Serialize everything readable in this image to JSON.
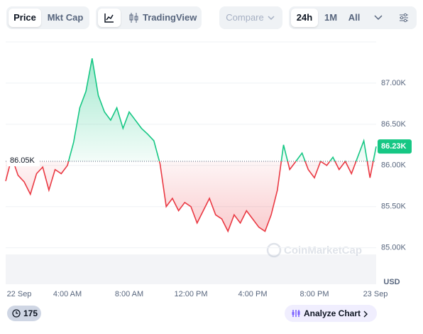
{
  "toolbar": {
    "tabs": [
      "Price",
      "Mkt Cap"
    ],
    "tradingview": "TradingView",
    "compare": "Compare",
    "ranges": [
      "24h",
      "1M",
      "All"
    ]
  },
  "chart_data": {
    "type": "line",
    "x": [
      0,
      0.4,
      0.8,
      1.2,
      1.6,
      2.0,
      2.4,
      2.8,
      3.2,
      3.6,
      4.0,
      4.4,
      4.8,
      5.2,
      5.6,
      6.0,
      6.4,
      6.8,
      7.2,
      7.6,
      8.0,
      8.4,
      8.8,
      9.2,
      9.6,
      10.0,
      10.4,
      10.8,
      11.2,
      11.6,
      12.0,
      12.4,
      12.8,
      13.2,
      13.6,
      14.0,
      14.4,
      14.8,
      15.2,
      15.6,
      16.0,
      16.4,
      16.8,
      17.2,
      17.6,
      18.0,
      18.4,
      18.8,
      19.2,
      19.6,
      20.0,
      20.4,
      20.8,
      21.2,
      21.6,
      22.0,
      22.4,
      22.8,
      23.2,
      23.6,
      24.0
    ],
    "values": [
      85810,
      86100,
      85880,
      85800,
      85650,
      85900,
      85980,
      85700,
      85950,
      85900,
      86000,
      86280,
      86700,
      86900,
      87300,
      86850,
      86650,
      86550,
      86700,
      86450,
      86650,
      86550,
      86450,
      86380,
      86300,
      86020,
      85500,
      85600,
      85450,
      85550,
      85500,
      85300,
      85450,
      85600,
      85400,
      85350,
      85200,
      85400,
      85300,
      85450,
      85350,
      85250,
      85200,
      85400,
      85700,
      86250,
      85950,
      86050,
      86150,
      85950,
      85850,
      86050,
      86000,
      86100,
      85950,
      86050,
      85900,
      86100,
      86300,
      85850,
      86230
    ],
    "color_up": "#16c784",
    "color_down": "#ea3943",
    "baseline": {
      "value": 86050,
      "label": "86.05K"
    },
    "last_price": {
      "value": 86230,
      "label": "86.23K"
    },
    "xlim": [
      0,
      24
    ],
    "xticks": [
      {
        "value": 0,
        "label": "22 Sep"
      },
      {
        "value": 4,
        "label": "4:00 AM"
      },
      {
        "value": 8,
        "label": "8:00 AM"
      },
      {
        "value": 12,
        "label": "12:00 PM"
      },
      {
        "value": 16,
        "label": "4:00 PM"
      },
      {
        "value": 20,
        "label": "8:00 PM"
      },
      {
        "value": 24,
        "label": "23 Sep"
      }
    ],
    "ylim": [
      84600,
      87500
    ],
    "yticks": [
      {
        "value": 85000,
        "label": "85.00K"
      },
      {
        "value": 85500,
        "label": "85.50K"
      },
      {
        "value": 86000,
        "label": "86.00K"
      },
      {
        "value": 86500,
        "label": "86.50K"
      },
      {
        "value": 87000,
        "label": "87.00K"
      }
    ],
    "y_unit": "USD",
    "grid": true,
    "watermark": "CoinMarketCap"
  },
  "footer": {
    "badge": "175",
    "analyze": "Analyze Chart"
  }
}
